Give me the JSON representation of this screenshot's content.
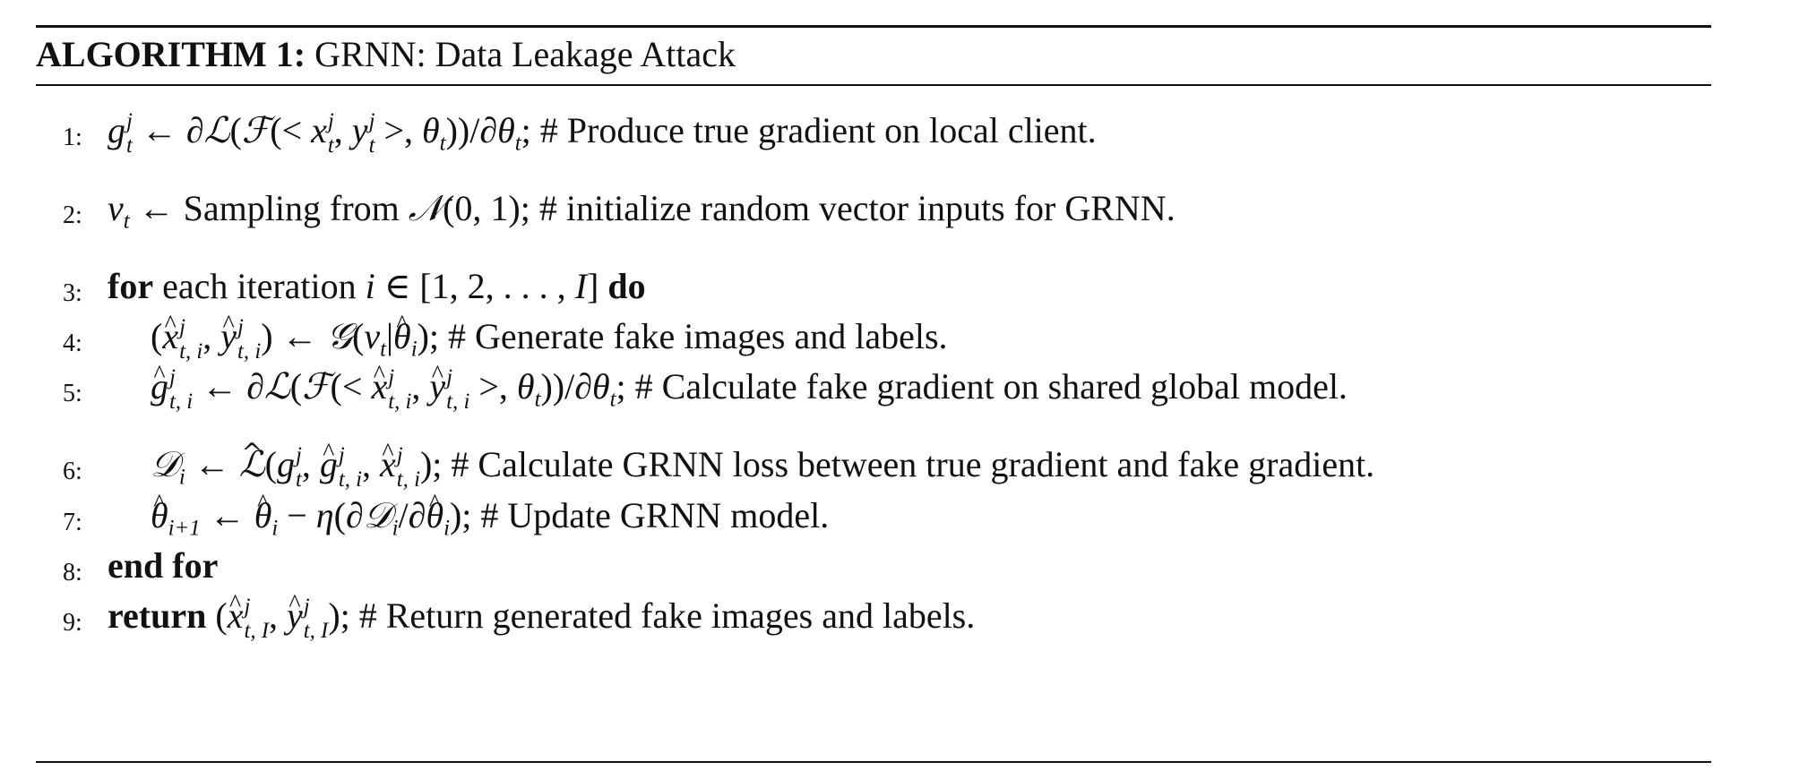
{
  "algorithm": {
    "label": "ALGORITHM 1:",
    "title": "GRNN: Data Leakage Attack",
    "keywords": {
      "for": "for",
      "do": "do",
      "end_for": "end for",
      "return": "return"
    },
    "lines": [
      {
        "num": "1:",
        "comment": "# Produce true gradient on local client."
      },
      {
        "num": "2:",
        "sampling": "Sampling from",
        "comment": "# initialize random vector inputs for GRNN."
      },
      {
        "num": "3:",
        "text": "each iteration"
      },
      {
        "num": "4:",
        "comment": "# Generate fake images and labels."
      },
      {
        "num": "5:",
        "comment": "# Calculate fake gradient on shared global model."
      },
      {
        "num": "6:",
        "comment": "# Calculate GRNN loss between true gradient and fake gradient."
      },
      {
        "num": "7:",
        "comment": "# Update GRNN model."
      },
      {
        "num": "8:"
      },
      {
        "num": "9:",
        "comment": "# Return generated fake images and labels."
      }
    ]
  }
}
